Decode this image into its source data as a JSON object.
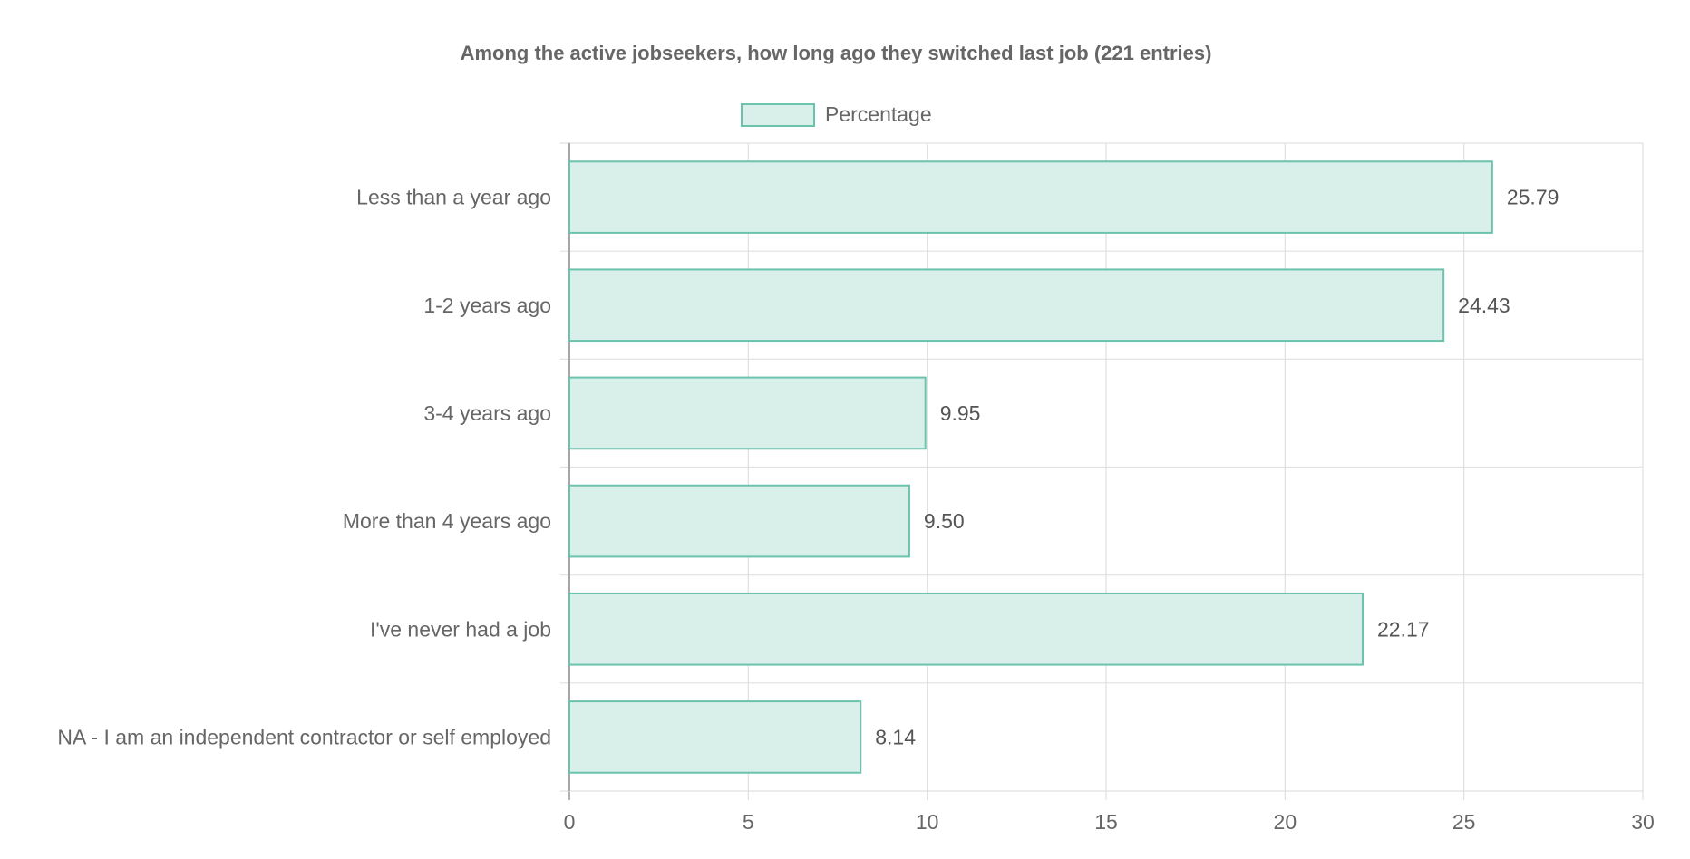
{
  "chart_data": {
    "type": "bar",
    "orientation": "horizontal",
    "title": "Among the active jobseekers, how long ago they switched last job (221 entries)",
    "categories": [
      "Less than a year ago",
      "1-2 years ago",
      "3-4 years ago",
      "More than 4 years ago",
      "I've never had a job",
      "NA - I am an independent contractor or self employed"
    ],
    "series": [
      {
        "name": "Percentage",
        "values": [
          25.79,
          24.43,
          9.95,
          9.5,
          22.17,
          8.14
        ]
      }
    ],
    "data_labels": [
      "25.79",
      "24.43",
      "9.95",
      "9.50",
      "22.17",
      "8.14"
    ],
    "x_ticks": [
      "0",
      "5",
      "10",
      "15",
      "20",
      "25",
      "30"
    ],
    "xlim": [
      0,
      30
    ],
    "xlabel": "",
    "ylabel": "",
    "grid": true,
    "legend_position": "top",
    "colors": {
      "bar_fill": "#d9f0ea",
      "bar_stroke": "#6cc3ad",
      "grid": "#e0e0e0",
      "axis": "#999999",
      "text": "#666666"
    }
  }
}
